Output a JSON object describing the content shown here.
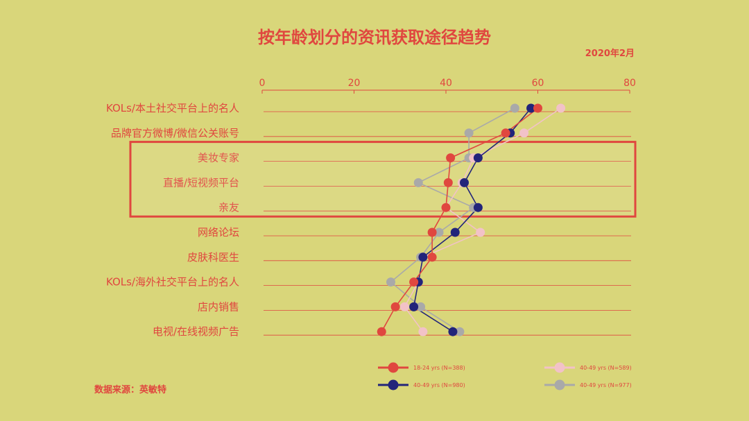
{
  "header": {
    "title": "按年龄划分的资讯获取途径趋势",
    "date": "2020年2月"
  },
  "footer": {
    "source": "数据来源：英敏特"
  },
  "colors": {
    "background": "#d9d67a",
    "accent": "#e0473f"
  },
  "chart_data": {
    "type": "line",
    "orientation": "horizontal",
    "x_ticks": [
      0,
      20,
      40,
      60,
      80
    ],
    "xlim": [
      0,
      80
    ],
    "categories": [
      "KOLs/本土社交平台上的名人",
      "品牌官方微博/微信公关账号",
      "美妆专家",
      "直播/短视频平台",
      "亲友",
      "网络论坛",
      "皮肤科医生",
      "KOLs/海外社交平台上的名人",
      "店内销售",
      "电视/在线视频广告"
    ],
    "highlighted_categories": [
      "美妆专家",
      "直播/短视频平台",
      "亲友"
    ],
    "series": [
      {
        "name": "18-24 yrs (N=388)",
        "color": "#e0473f",
        "values": [
          60,
          53,
          41,
          40.5,
          40,
          37,
          37,
          33,
          29,
          26
        ]
      },
      {
        "name": "40-49 yrs (N=589)",
        "color": "#f2c2c8",
        "values": [
          65,
          57,
          46,
          43.5,
          40,
          47.5,
          35,
          34,
          31,
          35
        ]
      },
      {
        "name": "40-49 yrs (N=980)",
        "color": "#22247a",
        "values": [
          58.5,
          54,
          47,
          44,
          47,
          42,
          35,
          34,
          33,
          41.5
        ]
      },
      {
        "name": "40-49 yrs (N=977)",
        "color": "#a9a9a9",
        "values": [
          55,
          45,
          45,
          34,
          46,
          38.5,
          34.5,
          28,
          34.5,
          43
        ]
      }
    ],
    "legend": "bottom-right",
    "grid": true
  }
}
